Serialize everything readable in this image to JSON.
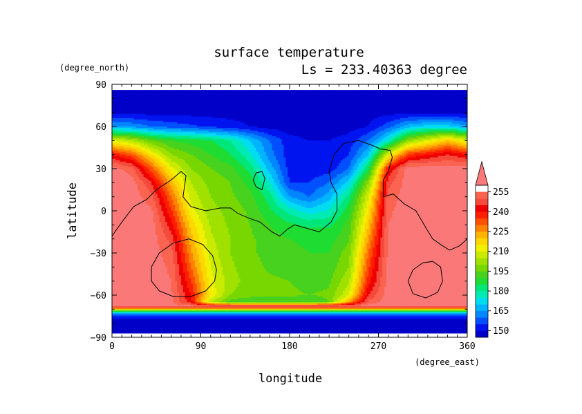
{
  "chart_data": {
    "type": "heatmap",
    "title": "surface temperature",
    "subtitle": "Ls = 233.40363 degree",
    "xlabel": "longitude",
    "ylabel": "latitude",
    "x_units": "(degree_east)",
    "y_units": "(degree_north)",
    "xlim": [
      0,
      360
    ],
    "ylim": [
      -90,
      90
    ],
    "x_ticks": [
      0,
      90,
      180,
      270,
      360
    ],
    "x_tick_labels": [
      "0",
      "90",
      "180",
      "270",
      "360"
    ],
    "y_ticks": [
      90,
      60,
      30,
      0,
      -30,
      -60,
      -90
    ],
    "y_tick_labels": [
      "90",
      "60",
      "30",
      "0",
      "−30",
      "−60",
      "−90"
    ],
    "data_lat_range": [
      -87,
      86
    ],
    "colorbar": {
      "levels": [
        145,
        150,
        155,
        160,
        165,
        170,
        175,
        180,
        185,
        190,
        195,
        200,
        205,
        210,
        215,
        220,
        225,
        230,
        235,
        240,
        245,
        250,
        255,
        260
      ],
      "colors": [
        "#0000c8",
        "#0014f0",
        "#0050ff",
        "#0087ff",
        "#00b4ff",
        "#00dcf0",
        "#00ebb4",
        "#00e678",
        "#1edc32",
        "#46d21e",
        "#78d700",
        "#a0e100",
        "#c8eb00",
        "#f0f000",
        "#ffd700",
        "#ffb400",
        "#ff8200",
        "#ff5000",
        "#ff1e00",
        "#ee0000",
        "#f54b3c",
        "#fa6450",
        "#fa7878"
      ],
      "labels": [
        "150",
        "165",
        "180",
        "195",
        "210",
        "225",
        "240",
        "255"
      ],
      "label_values": [
        150,
        165,
        180,
        195,
        210,
        225,
        240,
        255
      ],
      "extend": "max"
    },
    "temperature_field": {
      "lat": [
        86,
        80,
        70,
        60,
        50,
        40,
        30,
        20,
        10,
        0,
        -10,
        -20,
        -30,
        -40,
        -50,
        -60,
        -65,
        -68,
        -70,
        -72,
        -75,
        -80,
        -87
      ],
      "lon": [
        0,
        20,
        40,
        60,
        80,
        100,
        120,
        140,
        160,
        180,
        200,
        220,
        240,
        260,
        280,
        300,
        320,
        340,
        360
      ],
      "values": [
        [
          145,
          145,
          145,
          145,
          145,
          145,
          145,
          145,
          145,
          145,
          145,
          145,
          145,
          145,
          145,
          145,
          145,
          145,
          145
        ],
        [
          145,
          145,
          145,
          145,
          145,
          145,
          145,
          145,
          145,
          145,
          145,
          145,
          145,
          145,
          145,
          145,
          145,
          145,
          145
        ],
        [
          148,
          148,
          148,
          148,
          148,
          148,
          148,
          148,
          148,
          148,
          148,
          148,
          148,
          148,
          148,
          148,
          148,
          148,
          148
        ],
        [
          165,
          164,
          160,
          158,
          156,
          154,
          152,
          150,
          148,
          147,
          147,
          147,
          148,
          150,
          158,
          168,
          172,
          172,
          165
        ],
        [
          210,
          205,
          195,
          190,
          188,
          185,
          180,
          170,
          160,
          152,
          150,
          150,
          152,
          160,
          175,
          200,
          210,
          220,
          210
        ],
        [
          240,
          232,
          215,
          200,
          195,
          190,
          185,
          176,
          162,
          152,
          150,
          150,
          155,
          170,
          210,
          235,
          240,
          245,
          240
        ],
        [
          258,
          252,
          232,
          212,
          200,
          195,
          192,
          183,
          168,
          153,
          152,
          152,
          160,
          185,
          240,
          258,
          258,
          258,
          258
        ],
        [
          258,
          258,
          245,
          222,
          205,
          198,
          195,
          188,
          175,
          155,
          155,
          160,
          172,
          200,
          248,
          258,
          258,
          258,
          258
        ],
        [
          258,
          258,
          252,
          230,
          208,
          200,
          196,
          192,
          182,
          165,
          160,
          168,
          182,
          210,
          252,
          258,
          258,
          258,
          258
        ],
        [
          258,
          258,
          256,
          236,
          212,
          202,
          198,
          194,
          186,
          178,
          172,
          176,
          188,
          215,
          254,
          258,
          258,
          258,
          258
        ],
        [
          258,
          258,
          258,
          242,
          218,
          204,
          199,
          195,
          190,
          186,
          184,
          184,
          192,
          220,
          255,
          258,
          258,
          258,
          258
        ],
        [
          258,
          258,
          258,
          248,
          222,
          206,
          200,
          196,
          192,
          190,
          188,
          188,
          194,
          225,
          256,
          258,
          258,
          258,
          258
        ],
        [
          258,
          258,
          258,
          252,
          226,
          208,
          200,
          196,
          193,
          192,
          190,
          190,
          198,
          230,
          256,
          258,
          258,
          258,
          258
        ],
        [
          258,
          258,
          258,
          254,
          230,
          210,
          201,
          197,
          194,
          193,
          191,
          192,
          200,
          234,
          257,
          258,
          258,
          258,
          258
        ],
        [
          258,
          258,
          258,
          255,
          235,
          212,
          202,
          198,
          196,
          195,
          193,
          194,
          204,
          238,
          257,
          258,
          258,
          258,
          258
        ],
        [
          258,
          258,
          258,
          256,
          240,
          214,
          200,
          197,
          196,
          196,
          195,
          196,
          210,
          245,
          258,
          258,
          258,
          258,
          258
        ],
        [
          258,
          258,
          258,
          256,
          242,
          205,
          192,
          190,
          190,
          190,
          190,
          195,
          225,
          252,
          258,
          258,
          258,
          258,
          258
        ],
        [
          258,
          258,
          258,
          258,
          258,
          258,
          258,
          258,
          258,
          258,
          258,
          258,
          258,
          258,
          258,
          258,
          258,
          258,
          258
        ],
        [
          220,
          220,
          220,
          220,
          220,
          220,
          220,
          220,
          220,
          220,
          220,
          220,
          220,
          220,
          220,
          220,
          220,
          220,
          220
        ],
        [
          175,
          175,
          175,
          175,
          175,
          175,
          175,
          175,
          175,
          175,
          175,
          175,
          175,
          175,
          175,
          175,
          175,
          175,
          175
        ],
        [
          152,
          152,
          152,
          152,
          152,
          152,
          152,
          152,
          152,
          152,
          152,
          152,
          152,
          152,
          152,
          152,
          152,
          152,
          152
        ],
        [
          147,
          147,
          147,
          147,
          147,
          147,
          147,
          147,
          147,
          147,
          147,
          147,
          147,
          147,
          147,
          147,
          147,
          147,
          147
        ],
        [
          147,
          147,
          147,
          147,
          147,
          147,
          147,
          147,
          147,
          147,
          147,
          147,
          147,
          147,
          147,
          147,
          147,
          147,
          147
        ]
      ]
    },
    "topography_contours": [
      [
        [
          0,
          -18
        ],
        [
          10,
          -8
        ],
        [
          22,
          3
        ],
        [
          35,
          8
        ],
        [
          45,
          15
        ],
        [
          60,
          22
        ],
        [
          70,
          28
        ],
        [
          75,
          25
        ],
        [
          72,
          10
        ],
        [
          80,
          3
        ],
        [
          95,
          0
        ],
        [
          110,
          2
        ],
        [
          120,
          2
        ],
        [
          128,
          -2
        ],
        [
          138,
          -5
        ],
        [
          150,
          -8
        ],
        [
          162,
          -15
        ],
        [
          170,
          -18
        ],
        [
          178,
          -13
        ],
        [
          185,
          -10
        ],
        [
          195,
          -12
        ],
        [
          210,
          -15
        ],
        [
          222,
          -8
        ],
        [
          228,
          0
        ],
        [
          228,
          12
        ],
        [
          222,
          20
        ],
        [
          220,
          28
        ],
        [
          225,
          40
        ],
        [
          235,
          48
        ],
        [
          250,
          50
        ],
        [
          262,
          47
        ],
        [
          272,
          44
        ],
        [
          282,
          43
        ],
        [
          284,
          38
        ],
        [
          280,
          28
        ],
        [
          275,
          22
        ],
        [
          275,
          10
        ],
        [
          285,
          12
        ],
        [
          296,
          5
        ],
        [
          308,
          0
        ],
        [
          318,
          -12
        ],
        [
          325,
          -20
        ],
        [
          333,
          -24
        ],
        [
          342,
          -28
        ],
        [
          352,
          -25
        ],
        [
          360,
          -20
        ]
      ],
      [
        [
          40,
          -40
        ],
        [
          48,
          -30
        ],
        [
          62,
          -23
        ],
        [
          78,
          -20
        ],
        [
          92,
          -24
        ],
        [
          102,
          -32
        ],
        [
          106,
          -42
        ],
        [
          104,
          -50
        ],
        [
          95,
          -57
        ],
        [
          80,
          -61
        ],
        [
          62,
          -61
        ],
        [
          48,
          -57
        ],
        [
          40,
          -50
        ],
        [
          40,
          -40
        ]
      ],
      [
        [
          300,
          -50
        ],
        [
          305,
          -42
        ],
        [
          315,
          -37
        ],
        [
          325,
          -36
        ],
        [
          333,
          -40
        ],
        [
          335,
          -50
        ],
        [
          330,
          -58
        ],
        [
          318,
          -62
        ],
        [
          305,
          -59
        ],
        [
          300,
          -50
        ]
      ],
      [
        [
          143,
          22
        ],
        [
          146,
          27
        ],
        [
          152,
          28
        ],
        [
          155,
          23
        ],
        [
          152,
          15
        ],
        [
          146,
          17
        ],
        [
          143,
          22
        ]
      ]
    ]
  }
}
